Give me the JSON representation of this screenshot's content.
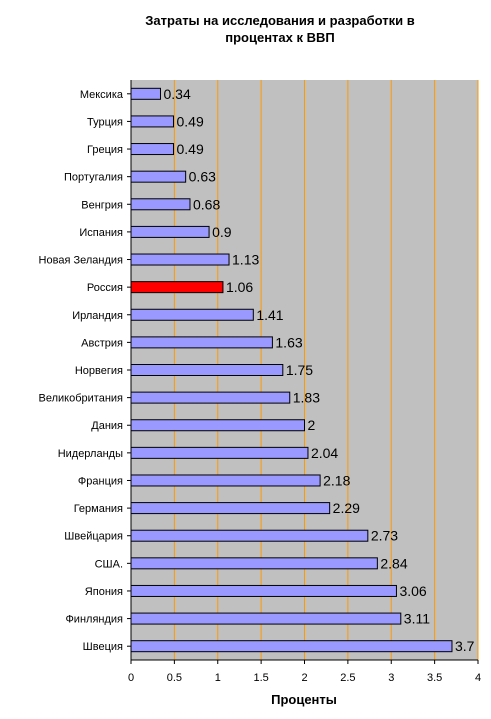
{
  "chart_data": {
    "type": "bar",
    "orientation": "horizontal",
    "title": [
      "Затраты на исследования и разработки в",
      "процентах к ВВП"
    ],
    "xlabel": "Проценты",
    "ylabel": "",
    "xlim": [
      0,
      4
    ],
    "x_ticks": [
      "0",
      "0.5",
      "1",
      "1.5",
      "2",
      "2.5",
      "3",
      "3.5",
      "4"
    ],
    "grid": "vertical",
    "legend": "none",
    "categories": [
      "Мексика",
      "Турция",
      "Греция",
      "Португалия",
      "Венгрия",
      "Испания",
      "Новая Зеландия",
      "Россия",
      "Ирландия",
      "Австрия",
      "Норвегия",
      "Великобритания",
      "Дания",
      "Нидерланды",
      "Франция",
      "Германия",
      "Швейцария",
      "США.",
      "Япония",
      "Финляндия",
      "Швеция"
    ],
    "values": [
      0.34,
      0.49,
      0.49,
      0.63,
      0.68,
      0.9,
      1.13,
      1.06,
      1.41,
      1.63,
      1.75,
      1.83,
      2,
      2.04,
      2.18,
      2.29,
      2.73,
      2.84,
      3.06,
      3.11,
      3.7
    ],
    "value_labels": [
      "0.34",
      "0.49",
      "0.49",
      "0.63",
      "0.68",
      "0.9",
      "1.13",
      "1.06",
      "1.41",
      "1.63",
      "1.75",
      "1.83",
      "2",
      "2.04",
      "2.18",
      "2.29",
      "2.73",
      "2.84",
      "3.06",
      "3.11",
      "3.7"
    ],
    "highlight": "Россия",
    "colors": {
      "bar": "#9999ff",
      "highlight_bar": "#ff0000",
      "plot_background": "#c0c0c0",
      "gridline": "#ff9900",
      "bar_border": "#000000"
    }
  }
}
